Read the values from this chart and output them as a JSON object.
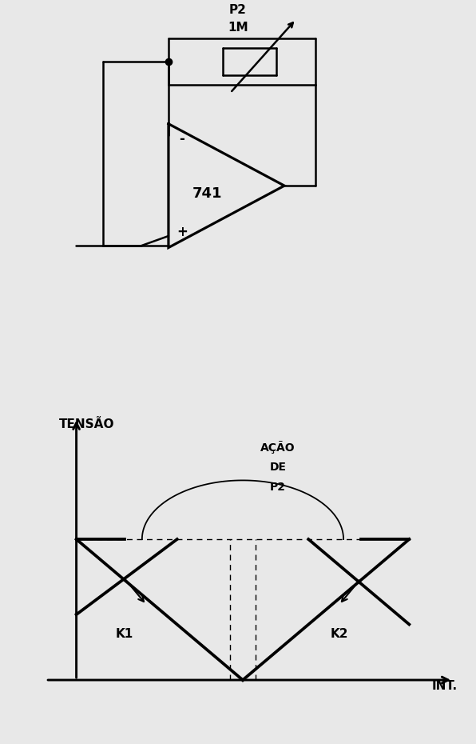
{
  "bg_color": "#e8e8e8",
  "line_color": "#000000",
  "fig_width": 5.96,
  "fig_height": 9.3,
  "dpi": 100,
  "circuit": {
    "op_amp_label": "741",
    "resistor_label_line1": "P2",
    "resistor_label_line2": "1M",
    "minus_label": "-",
    "plus_label": "+"
  },
  "graph": {
    "ylabel": "TENSÃO",
    "xlabel": "INT.",
    "k1_label": "K1",
    "k2_label": "K2",
    "action_label_line1": "AÇÃO",
    "action_label_line2": "DE",
    "action_label_line3": "P2"
  }
}
